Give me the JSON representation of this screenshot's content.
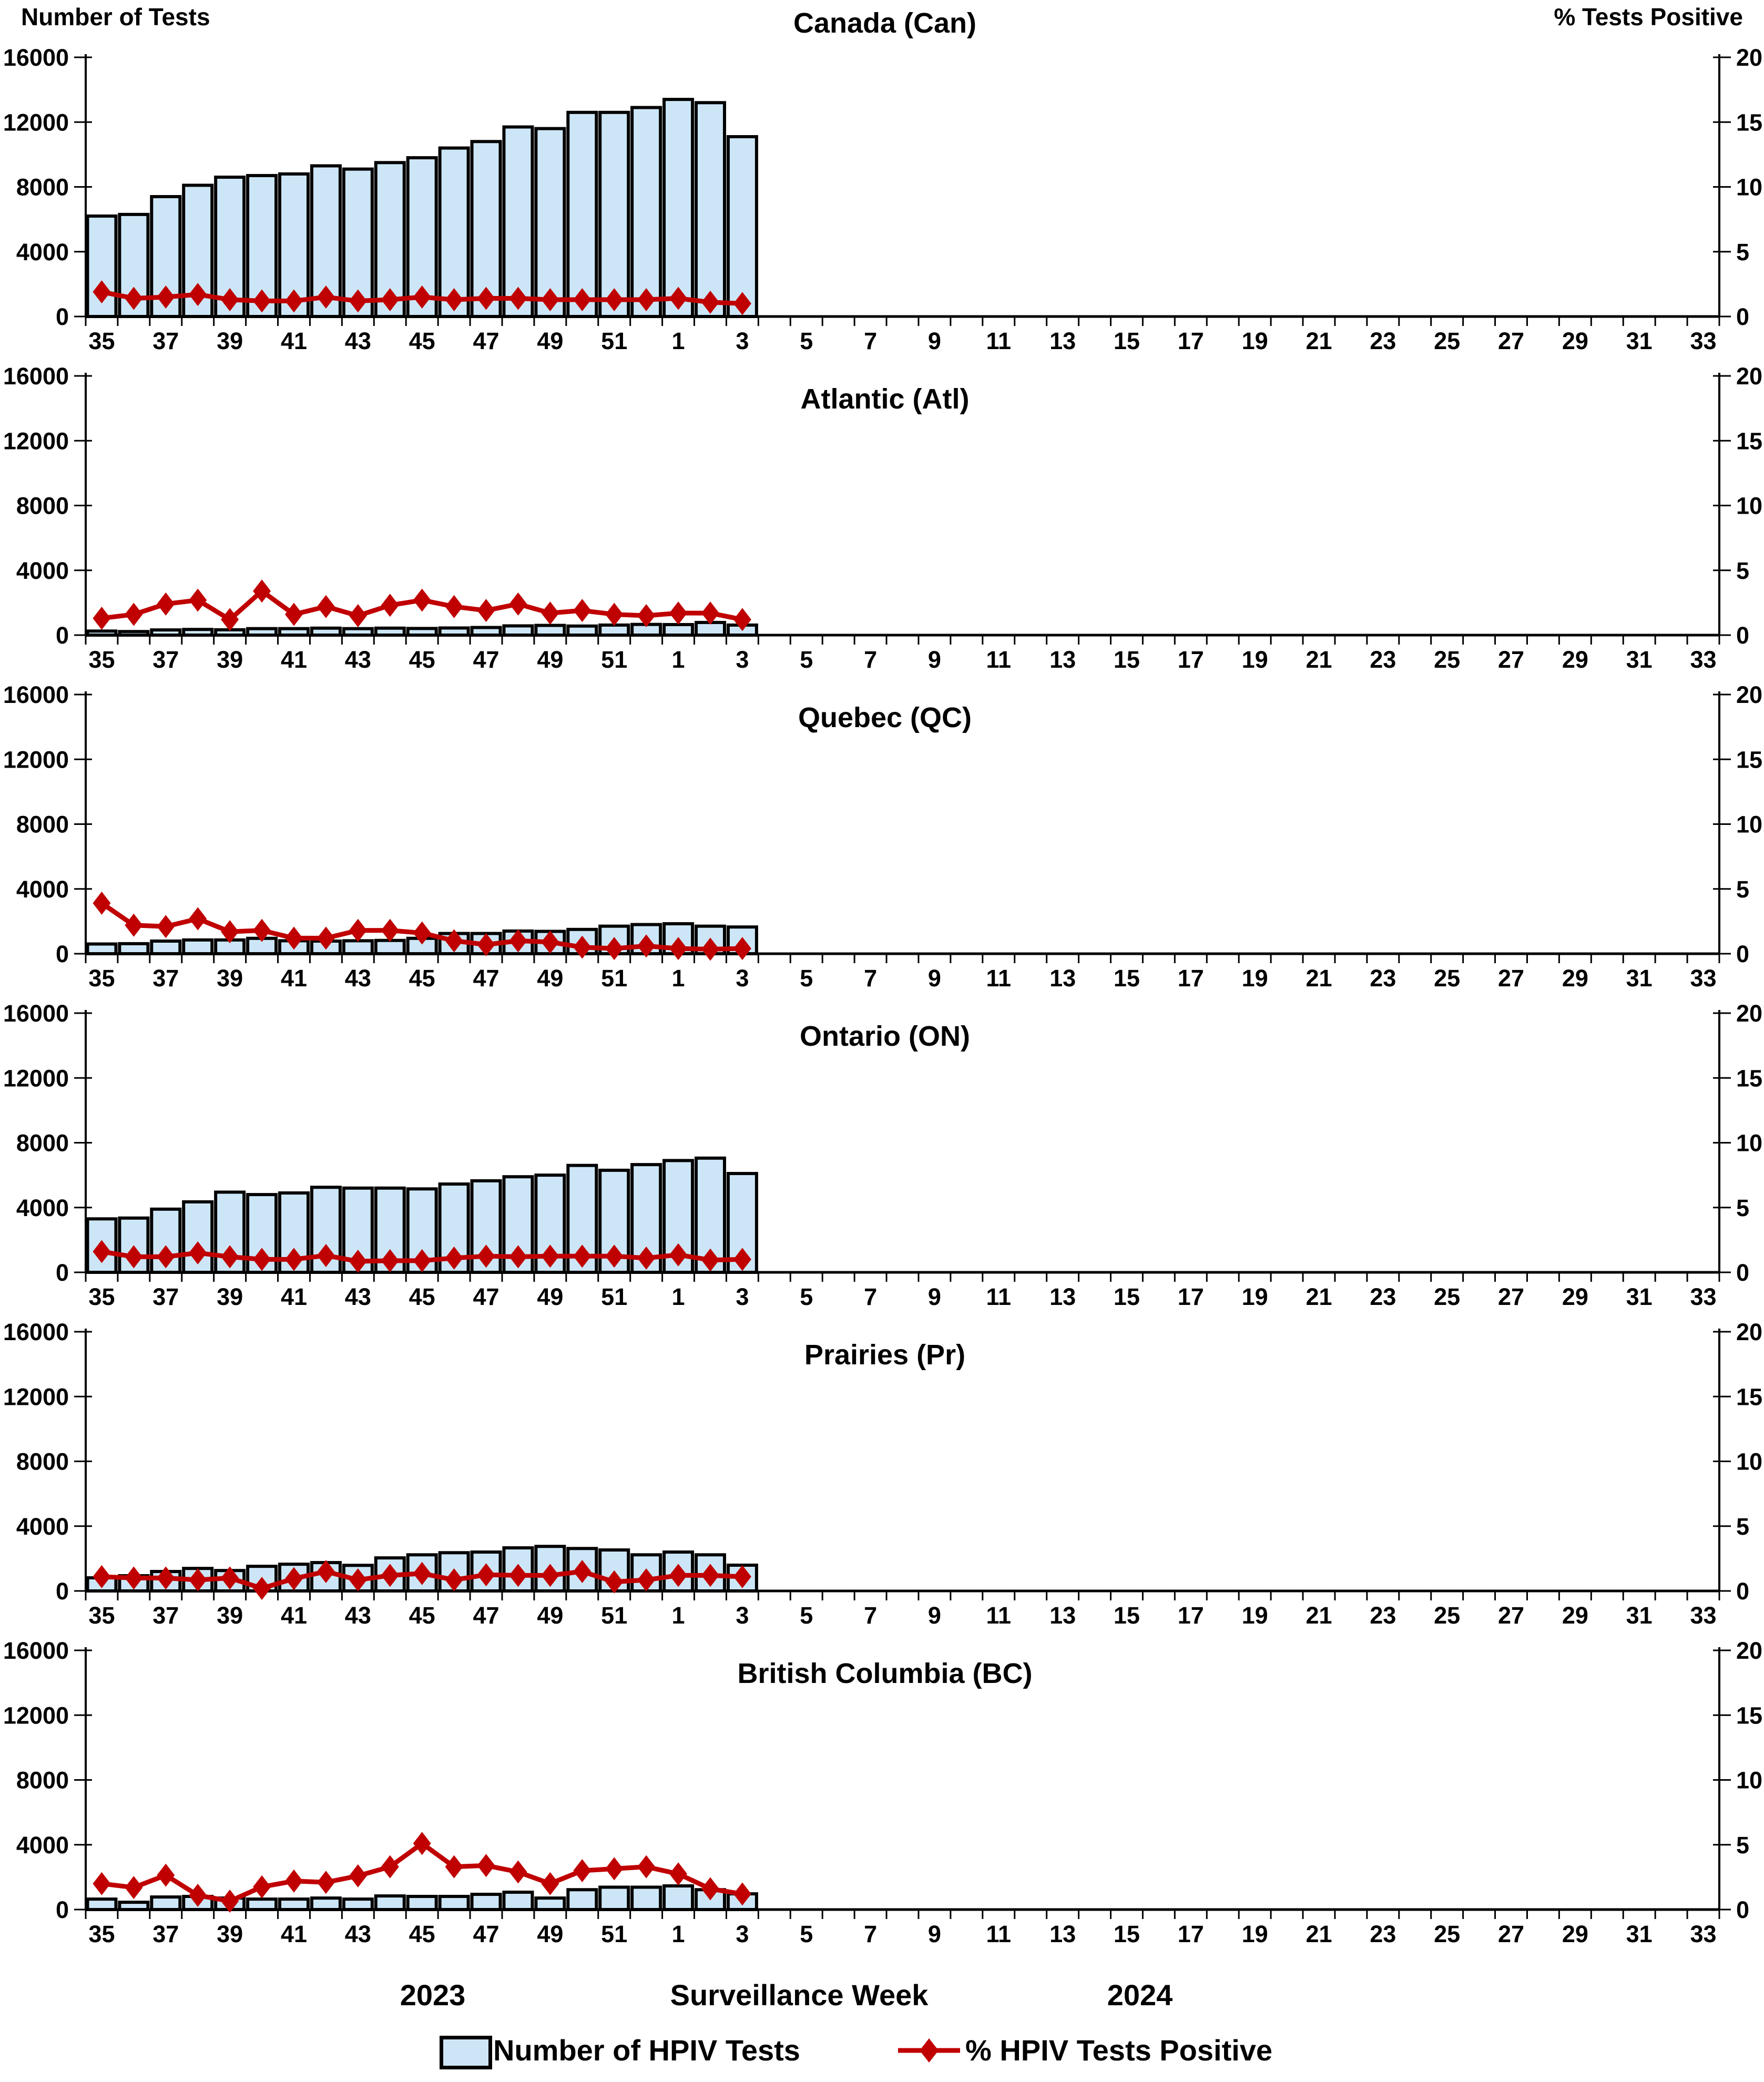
{
  "figure": {
    "left_axis_title": "Number of Tests",
    "right_axis_title": "% Tests Positive",
    "x_axis_title": "Surveillance Week",
    "year_left": "2023",
    "year_right": "2024"
  },
  "axes": {
    "left_title": "Number of Tests",
    "right_title": "% Tests Positive",
    "left_ticks": [
      0,
      4000,
      8000,
      12000,
      16000
    ],
    "right_ticks": [
      0,
      5,
      10,
      15,
      20
    ],
    "left_max": 16000,
    "right_max": 20,
    "x_weeks_2023": [
      35,
      36,
      37,
      38,
      39,
      40,
      41,
      42,
      43,
      44,
      45,
      46,
      47,
      48,
      49,
      50,
      51,
      52
    ],
    "x_weeks_2024": [
      1,
      2,
      3,
      4,
      5,
      6,
      7,
      8,
      9,
      10,
      11,
      12,
      13,
      14,
      15,
      16,
      17,
      18,
      19,
      20,
      21,
      22,
      23,
      24,
      25,
      26,
      27,
      28,
      29,
      30,
      31,
      32,
      33
    ]
  },
  "footer": {
    "year_left": "2023",
    "xlabel": "Surveillance Week",
    "year_right": "2024"
  },
  "legend": [
    {
      "label": "Number of HPIV Tests",
      "type": "bar",
      "color": "#CDE6F7"
    },
    {
      "label": "% HPIV Tests Positive",
      "type": "line",
      "color": "#C00000"
    }
  ],
  "colors": {
    "bar_fill": "#CDE6F7",
    "bar_border": "#000000",
    "line": "#C00000",
    "axis": "#000000",
    "background": "#FFFFFF"
  },
  "chart_data": [
    {
      "type": "bar+line",
      "id": "canada",
      "title": "Canada (Can)",
      "categories": [
        "35",
        "36",
        "37",
        "38",
        "39",
        "40",
        "41",
        "42",
        "43",
        "44",
        "45",
        "46",
        "47",
        "48",
        "49",
        "50",
        "51",
        "52",
        "1",
        "2",
        "3"
      ],
      "series": {
        "tests": [
          6200,
          6300,
          7400,
          8100,
          8600,
          8700,
          8800,
          9300,
          9100,
          9500,
          9800,
          10400,
          10800,
          11700,
          11600,
          12600,
          12600,
          12900,
          13400,
          13200,
          11100
        ],
        "pct_positive": [
          1.9,
          1.4,
          1.5,
          1.7,
          1.3,
          1.2,
          1.2,
          1.5,
          1.2,
          1.3,
          1.5,
          1.3,
          1.4,
          1.4,
          1.3,
          1.3,
          1.3,
          1.3,
          1.4,
          1.1,
          1.0
        ]
      },
      "ylim_left": [
        0,
        16000
      ],
      "ylim_right": [
        0,
        20
      ]
    },
    {
      "type": "bar+line",
      "id": "atlantic",
      "title": "Atlantic (Atl)",
      "categories": [
        "35",
        "36",
        "37",
        "38",
        "39",
        "40",
        "41",
        "42",
        "43",
        "44",
        "45",
        "46",
        "47",
        "48",
        "49",
        "50",
        "51",
        "52",
        "1",
        "2",
        "3"
      ],
      "series": {
        "tests": [
          250,
          220,
          320,
          350,
          330,
          400,
          400,
          430,
          400,
          430,
          410,
          440,
          470,
          570,
          600,
          560,
          620,
          660,
          650,
          780,
          620
        ],
        "pct_positive": [
          1.3,
          1.6,
          2.4,
          2.7,
          1.2,
          3.4,
          1.6,
          2.2,
          1.5,
          2.3,
          2.7,
          2.2,
          1.9,
          2.4,
          1.7,
          1.9,
          1.6,
          1.5,
          1.7,
          1.7,
          1.2
        ]
      },
      "ylim_left": [
        0,
        16000
      ],
      "ylim_right": [
        0,
        20
      ]
    },
    {
      "type": "bar+line",
      "id": "quebec",
      "title": "Quebec (QC)",
      "categories": [
        "35",
        "36",
        "37",
        "38",
        "39",
        "40",
        "41",
        "42",
        "43",
        "44",
        "45",
        "46",
        "47",
        "48",
        "49",
        "50",
        "51",
        "52",
        "1",
        "2",
        "3"
      ],
      "series": {
        "tests": [
          600,
          620,
          780,
          850,
          850,
          950,
          800,
          780,
          800,
          820,
          950,
          1250,
          1250,
          1400,
          1380,
          1500,
          1700,
          1800,
          1850,
          1700,
          1650
        ],
        "pct_positive": [
          3.9,
          2.2,
          2.1,
          2.7,
          1.7,
          1.8,
          1.2,
          1.2,
          1.8,
          1.8,
          1.6,
          1.0,
          0.7,
          1.0,
          0.9,
          0.5,
          0.4,
          0.6,
          0.4,
          0.35,
          0.4
        ]
      },
      "ylim_left": [
        0,
        16000
      ],
      "ylim_right": [
        0,
        20
      ]
    },
    {
      "type": "bar+line",
      "id": "ontario",
      "title": "Ontario (ON)",
      "categories": [
        "35",
        "36",
        "37",
        "38",
        "39",
        "40",
        "41",
        "42",
        "43",
        "44",
        "45",
        "46",
        "47",
        "48",
        "49",
        "50",
        "51",
        "52",
        "1",
        "2",
        "3"
      ],
      "series": {
        "tests": [
          3300,
          3350,
          3900,
          4350,
          4950,
          4800,
          4900,
          5250,
          5200,
          5200,
          5150,
          5450,
          5650,
          5900,
          6000,
          6600,
          6300,
          6650,
          6900,
          7050,
          6100
        ],
        "pct_positive": [
          1.6,
          1.2,
          1.2,
          1.5,
          1.2,
          1.0,
          1.0,
          1.3,
          0.85,
          0.9,
          0.9,
          1.1,
          1.25,
          1.2,
          1.25,
          1.25,
          1.25,
          1.1,
          1.35,
          0.95,
          1.0
        ]
      },
      "ylim_left": [
        0,
        16000
      ],
      "ylim_right": [
        0,
        20
      ]
    },
    {
      "type": "bar+line",
      "id": "prairies",
      "title": "Prairies (Pr)",
      "categories": [
        "35",
        "36",
        "37",
        "38",
        "39",
        "40",
        "41",
        "42",
        "43",
        "44",
        "45",
        "46",
        "47",
        "48",
        "49",
        "50",
        "51",
        "52",
        "1",
        "2",
        "3"
      ],
      "series": {
        "tests": [
          810,
          940,
          1200,
          1390,
          1260,
          1520,
          1650,
          1750,
          1580,
          2040,
          2230,
          2360,
          2400,
          2660,
          2750,
          2620,
          2530,
          2230,
          2400,
          2230,
          1590
        ],
        "pct_positive": [
          1.1,
          1.0,
          1.0,
          0.85,
          1.0,
          0.2,
          0.95,
          1.5,
          0.85,
          1.2,
          1.35,
          0.85,
          1.25,
          1.2,
          1.2,
          1.5,
          0.7,
          0.85,
          1.2,
          1.2,
          1.1
        ]
      },
      "ylim_left": [
        0,
        16000
      ],
      "ylim_right": [
        0,
        20
      ]
    },
    {
      "type": "bar+line",
      "id": "british-columbia",
      "title": "British Columbia (BC)",
      "categories": [
        "35",
        "36",
        "37",
        "38",
        "39",
        "40",
        "41",
        "42",
        "43",
        "44",
        "45",
        "46",
        "47",
        "48",
        "49",
        "50",
        "51",
        "52",
        "1",
        "2",
        "3"
      ],
      "series": {
        "tests": [
          645,
          450,
          775,
          810,
          710,
          645,
          645,
          710,
          645,
          840,
          810,
          810,
          940,
          1070,
          710,
          1225,
          1380,
          1380,
          1460,
          1225,
          970
        ],
        "pct_positive": [
          2.0,
          1.7,
          2.65,
          1.1,
          0.65,
          1.75,
          2.2,
          2.1,
          2.6,
          3.3,
          5.1,
          3.3,
          3.4,
          2.9,
          2.0,
          3.0,
          3.15,
          3.3,
          2.75,
          1.6,
          1.2
        ]
      },
      "ylim_left": [
        0,
        16000
      ],
      "ylim_right": [
        0,
        20
      ]
    }
  ]
}
